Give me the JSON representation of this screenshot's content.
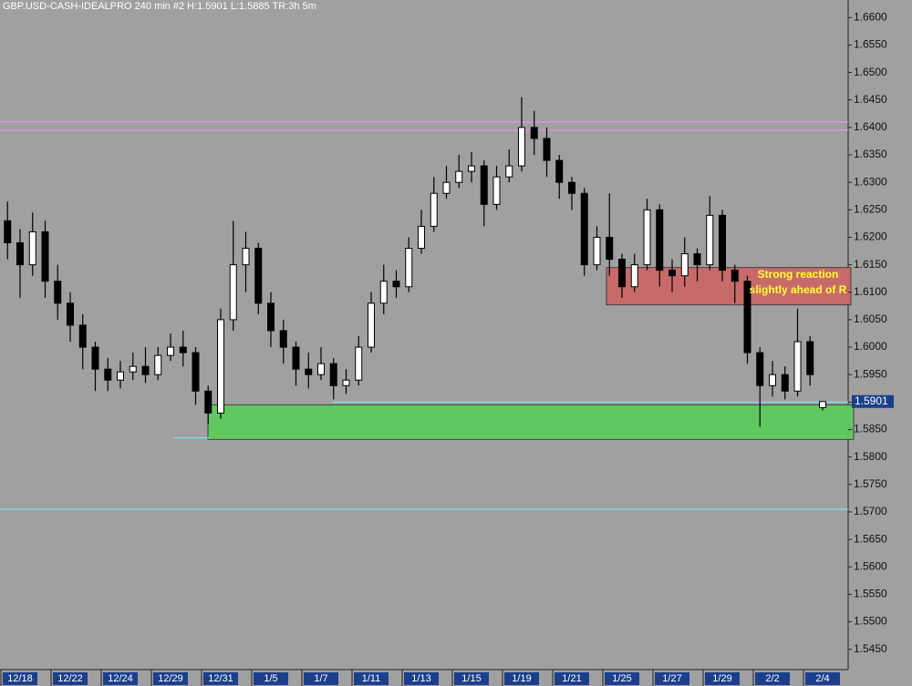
{
  "chart_data": {
    "type": "candlestick",
    "title": "GBP.USD-CASH-IDEALPRO  240 min   #2  H:1.5901  L:1.5885  TR:3h 5m",
    "categories": [
      null,
      "12/18",
      null,
      null,
      null,
      "12/22",
      null,
      null,
      null,
      "12/24",
      null,
      null,
      null,
      "12/29",
      null,
      null,
      null,
      "12/31",
      null,
      null,
      null,
      "1/5",
      null,
      null,
      null,
      "1/7",
      null,
      null,
      null,
      "1/11",
      null,
      null,
      null,
      "1/13",
      null,
      null,
      null,
      "1/15",
      null,
      null,
      null,
      "1/19",
      null,
      null,
      null,
      "1/21",
      null,
      null,
      null,
      "1/25",
      null,
      null,
      null,
      "1/27",
      null,
      null,
      null,
      "1/29",
      null,
      null,
      null,
      "2/2",
      null,
      null,
      null,
      "2/4"
    ],
    "series": [
      {
        "up_color": "#ffffff",
        "down_color": "#000000",
        "open": [
          1.623,
          1.619,
          1.615,
          1.621,
          1.612,
          1.608,
          1.604,
          1.6,
          1.596,
          1.594,
          1.5955,
          1.5965,
          1.595,
          1.5985,
          1.6,
          1.599,
          1.592,
          1.588,
          1.605,
          1.615,
          1.618,
          1.608,
          1.603,
          1.6,
          1.596,
          1.595,
          1.597,
          1.593,
          1.594,
          1.6,
          1.608,
          1.612,
          1.611,
          1.618,
          1.622,
          1.628,
          1.63,
          1.632,
          1.633,
          1.626,
          1.631,
          1.633,
          1.64,
          1.638,
          1.634,
          1.63,
          1.628,
          1.615,
          1.62,
          1.616,
          1.611,
          1.615,
          1.625,
          1.614,
          1.613,
          1.617,
          1.615,
          1.624,
          1.614,
          1.612,
          1.599,
          1.593,
          1.595,
          1.592,
          1.601,
          1.589
        ],
        "high": [
          1.6265,
          1.6215,
          1.6245,
          1.623,
          1.615,
          1.61,
          1.606,
          1.601,
          1.598,
          1.5975,
          1.599,
          1.6,
          1.6,
          1.6025,
          1.603,
          1.6,
          1.593,
          1.607,
          1.623,
          1.621,
          1.619,
          1.61,
          1.605,
          1.601,
          1.599,
          1.6,
          1.598,
          1.596,
          1.602,
          1.61,
          1.615,
          1.614,
          1.62,
          1.625,
          1.631,
          1.633,
          1.635,
          1.6355,
          1.634,
          1.633,
          1.636,
          1.6455,
          1.643,
          1.64,
          1.635,
          1.631,
          1.629,
          1.622,
          1.628,
          1.617,
          1.617,
          1.627,
          1.626,
          1.616,
          1.62,
          1.618,
          1.6275,
          1.625,
          1.615,
          1.613,
          1.6,
          1.5975,
          1.5965,
          1.607,
          1.602,
          1.5901
        ],
        "low": [
          1.616,
          1.609,
          1.613,
          1.609,
          1.605,
          1.601,
          1.596,
          1.592,
          1.592,
          1.5925,
          1.594,
          1.5935,
          1.594,
          1.5975,
          1.5965,
          1.5895,
          1.586,
          1.587,
          1.603,
          1.61,
          1.606,
          1.6,
          1.597,
          1.593,
          1.5925,
          1.594,
          1.5905,
          1.5915,
          1.593,
          1.599,
          1.606,
          1.609,
          1.61,
          1.617,
          1.621,
          1.627,
          1.629,
          1.63,
          1.622,
          1.625,
          1.63,
          1.632,
          1.635,
          1.631,
          1.627,
          1.625,
          1.613,
          1.614,
          1.613,
          1.609,
          1.61,
          1.614,
          1.611,
          1.61,
          1.611,
          1.612,
          1.614,
          1.612,
          1.608,
          1.597,
          1.5855,
          1.591,
          1.5905,
          1.591,
          1.593,
          1.5885
        ],
        "close": [
          1.619,
          1.615,
          1.621,
          1.612,
          1.608,
          1.604,
          1.6,
          1.596,
          1.594,
          1.5955,
          1.5965,
          1.595,
          1.5985,
          1.6,
          1.599,
          1.592,
          1.588,
          1.605,
          1.615,
          1.618,
          1.608,
          1.603,
          1.6,
          1.596,
          1.595,
          1.597,
          1.593,
          1.594,
          1.6,
          1.608,
          1.612,
          1.611,
          1.618,
          1.622,
          1.628,
          1.63,
          1.632,
          1.633,
          1.626,
          1.631,
          1.633,
          1.64,
          1.638,
          1.634,
          1.63,
          1.628,
          1.615,
          1.62,
          1.616,
          1.611,
          1.615,
          1.625,
          1.614,
          1.613,
          1.617,
          1.615,
          1.624,
          1.614,
          1.612,
          1.599,
          1.593,
          1.595,
          1.592,
          1.601,
          1.595,
          1.5901
        ]
      }
    ],
    "ylim": [
      1.5413,
      1.6632
    ],
    "yticks": [
      {
        "value": 1.66,
        "label": "1.6600"
      },
      {
        "value": 1.655,
        "label": "1.6550"
      },
      {
        "value": 1.65,
        "label": "1.6500"
      },
      {
        "value": 1.645,
        "label": "1.6450"
      },
      {
        "value": 1.64,
        "label": "1.6400"
      },
      {
        "value": 1.635,
        "label": "1.6350"
      },
      {
        "value": 1.63,
        "label": "1.6300"
      },
      {
        "value": 1.625,
        "label": "1.6250"
      },
      {
        "value": 1.62,
        "label": "1.6200"
      },
      {
        "value": 1.615,
        "label": "1.6150"
      },
      {
        "value": 1.61,
        "label": "1.6100"
      },
      {
        "value": 1.605,
        "label": "1.6050"
      },
      {
        "value": 1.6,
        "label": "1.6000"
      },
      {
        "value": 1.595,
        "label": "1.5950"
      },
      {
        "value": 1.59,
        "label": "1.5900"
      },
      {
        "value": 1.585,
        "label": "1.5850"
      },
      {
        "value": 1.58,
        "label": "1.5800"
      },
      {
        "value": 1.575,
        "label": "1.5750"
      },
      {
        "value": 1.57,
        "label": "1.5700"
      },
      {
        "value": 1.565,
        "label": "1.5650"
      },
      {
        "value": 1.56,
        "label": "1.5600"
      },
      {
        "value": 1.555,
        "label": "1.5550"
      },
      {
        "value": 1.55,
        "label": "1.5500"
      },
      {
        "value": 1.545,
        "label": "1.5450"
      }
    ],
    "levels": [
      {
        "value": 1.641,
        "color": "#e890e8"
      },
      {
        "value": 1.6395,
        "color": "#e890e8"
      },
      {
        "value": 1.59,
        "color": "#7fe0f0"
      },
      {
        "value": 1.5835,
        "color": "#7fe0f0"
      },
      {
        "value": 1.5705,
        "color": "#7fe0f0"
      }
    ],
    "zones": [
      {
        "low": 1.5832,
        "high": 1.5895,
        "color": "#5ccc5c"
      },
      {
        "low": 1.6077,
        "high": 1.6145,
        "color": "#cc6666"
      }
    ],
    "annotation": {
      "lines": [
        "Strong reaction",
        "slightly ahead of R"
      ],
      "color": "#ffff33"
    }
  }
}
